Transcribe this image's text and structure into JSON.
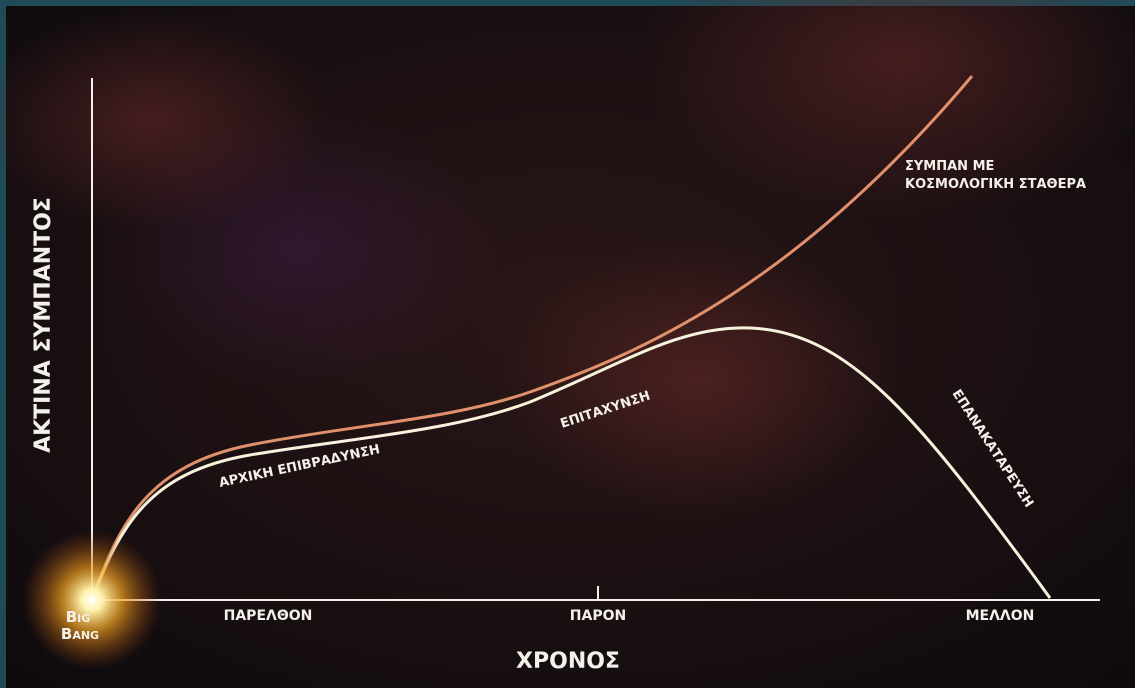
{
  "diagram": {
    "y_axis_label": "ΑΚΤΙΝΑ ΣΥΜΠΑΝΤΟΣ",
    "x_axis_label": "ΧΡΟΝΟΣ",
    "origin_label": [
      "Big",
      "Bang"
    ],
    "time_labels": [
      "ΠΑΡΕΛΘΟΝ",
      "ΠΑΡΟΝ",
      "ΜΕΛΛΟΝ"
    ],
    "curve_labels": {
      "cosmological_constant": [
        "ΣΥΜΠΑΝ ΜΕ",
        "ΚΟΣΜΟΛΟΓΙΚΗ ΣΤΑΘΕΡΑ"
      ],
      "initial_deceleration": "ΑΡΧΙΚΗ ΕΠΙΒΡΑΔΥΝΣΗ",
      "acceleration": "ΕΠΙΤΑΧΥΝΣΗ",
      "recollapse": "ΕΠΑΝΑΚΑΤΑΡΕΥΣΗ"
    }
  }
}
